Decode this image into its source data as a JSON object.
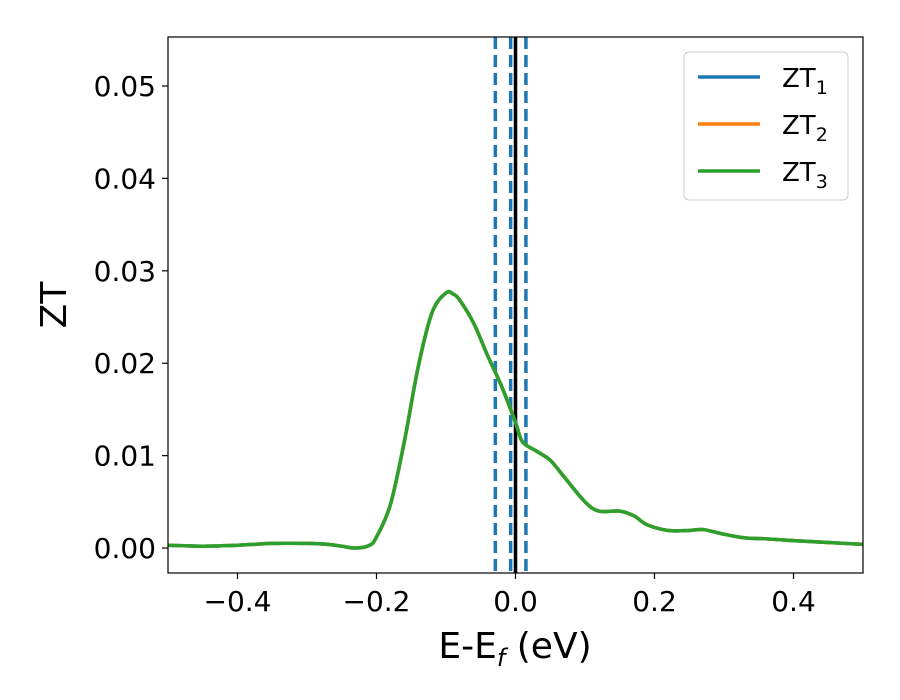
{
  "chart_data": {
    "type": "line",
    "xlabel": {
      "main": "E-E",
      "sub": "f",
      "tail": " (eV)"
    },
    "ylabel": "ZT",
    "xlim": [
      -0.5,
      0.5
    ],
    "ylim": [
      -0.0027,
      0.0553
    ],
    "xticks": [
      -0.4,
      -0.2,
      0.0,
      0.2,
      0.4
    ],
    "xtick_labels": [
      "−0.4",
      "−0.2",
      "0.0",
      "0.2",
      "0.4"
    ],
    "yticks": [
      0.0,
      0.01,
      0.02,
      0.03,
      0.04,
      0.05
    ],
    "ytick_labels": [
      "0.00",
      "0.01",
      "0.02",
      "0.03",
      "0.04",
      "0.05"
    ],
    "grid": false,
    "legend_position": "top-right",
    "series": [
      {
        "name": "ZT",
        "sub": "1",
        "color": "#1f77b4",
        "x": [
          -0.5,
          -0.45,
          -0.4,
          -0.35,
          -0.3,
          -0.27,
          -0.25,
          -0.23,
          -0.21,
          -0.2,
          -0.18,
          -0.16,
          -0.14,
          -0.12,
          -0.1,
          -0.09,
          -0.08,
          -0.06,
          -0.04,
          -0.02,
          0.0,
          0.01,
          0.03,
          0.05,
          0.07,
          0.1,
          0.12,
          0.15,
          0.17,
          0.19,
          0.22,
          0.25,
          0.27,
          0.3,
          0.33,
          0.36,
          0.4,
          0.45,
          0.5
        ],
        "y": [
          0.0003,
          0.0002,
          0.0003,
          0.0005,
          0.0005,
          0.0004,
          0.0002,
          0.0,
          0.0003,
          0.0012,
          0.0047,
          0.0115,
          0.0196,
          0.0255,
          0.0276,
          0.0275,
          0.0268,
          0.0243,
          0.0208,
          0.0175,
          0.0136,
          0.0115,
          0.0105,
          0.0095,
          0.0077,
          0.005,
          0.004,
          0.004,
          0.0035,
          0.0025,
          0.0019,
          0.0019,
          0.002,
          0.0015,
          0.0011,
          0.001,
          0.0008,
          0.0006,
          0.0004
        ]
      },
      {
        "name": "ZT",
        "sub": "2",
        "color": "#ff7f0e",
        "x": [
          -0.5,
          -0.45,
          -0.4,
          -0.35,
          -0.3,
          -0.27,
          -0.25,
          -0.23,
          -0.21,
          -0.2,
          -0.18,
          -0.16,
          -0.14,
          -0.12,
          -0.1,
          -0.09,
          -0.08,
          -0.06,
          -0.04,
          -0.02,
          0.0,
          0.01,
          0.03,
          0.05,
          0.07,
          0.1,
          0.12,
          0.15,
          0.17,
          0.19,
          0.22,
          0.25,
          0.27,
          0.3,
          0.33,
          0.36,
          0.4,
          0.45,
          0.5
        ],
        "y": [
          0.0003,
          0.0002,
          0.0003,
          0.0005,
          0.0005,
          0.0004,
          0.0002,
          0.0,
          0.0003,
          0.0012,
          0.0047,
          0.0115,
          0.0196,
          0.0255,
          0.0276,
          0.0275,
          0.0268,
          0.0243,
          0.0208,
          0.0175,
          0.0136,
          0.0115,
          0.0105,
          0.0095,
          0.0077,
          0.005,
          0.004,
          0.004,
          0.0035,
          0.0025,
          0.0019,
          0.0019,
          0.002,
          0.0015,
          0.0011,
          0.001,
          0.0008,
          0.0006,
          0.0004
        ]
      },
      {
        "name": "ZT",
        "sub": "3",
        "color": "#2ca02c",
        "x": [
          -0.5,
          -0.45,
          -0.4,
          -0.35,
          -0.3,
          -0.27,
          -0.25,
          -0.23,
          -0.21,
          -0.2,
          -0.18,
          -0.16,
          -0.14,
          -0.12,
          -0.1,
          -0.09,
          -0.08,
          -0.06,
          -0.04,
          -0.02,
          0.0,
          0.01,
          0.03,
          0.05,
          0.07,
          0.1,
          0.12,
          0.15,
          0.17,
          0.19,
          0.22,
          0.25,
          0.27,
          0.3,
          0.33,
          0.36,
          0.4,
          0.45,
          0.5
        ],
        "y": [
          0.0003,
          0.0002,
          0.0003,
          0.0005,
          0.0005,
          0.0004,
          0.0002,
          0.0,
          0.0003,
          0.0012,
          0.0047,
          0.0115,
          0.0196,
          0.0255,
          0.0276,
          0.0275,
          0.0268,
          0.0243,
          0.0208,
          0.0175,
          0.0136,
          0.0115,
          0.0105,
          0.0095,
          0.0077,
          0.005,
          0.004,
          0.004,
          0.0035,
          0.0025,
          0.0019,
          0.0019,
          0.002,
          0.0015,
          0.0011,
          0.001,
          0.0008,
          0.0006,
          0.0004
        ]
      }
    ],
    "vertical_lines": [
      {
        "x": -0.029,
        "style": "dashed",
        "color": "#1f77b4"
      },
      {
        "x": -0.007,
        "style": "dashed",
        "color": "#1f77b4"
      },
      {
        "x": 0.015,
        "style": "dashed",
        "color": "#1f77b4"
      },
      {
        "x": 0.0,
        "style": "solid",
        "color": "#000000"
      }
    ]
  }
}
